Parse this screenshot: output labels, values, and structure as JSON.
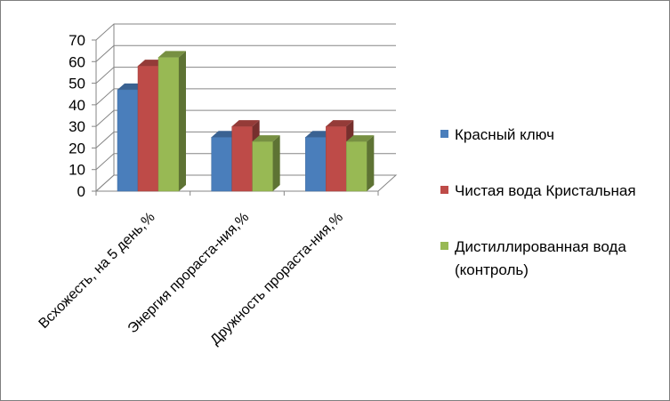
{
  "chart_data": {
    "type": "bar",
    "title": "",
    "categories": [
      "Всхожесть,  на 5 день,%",
      "Энергия прораста-ния,%",
      "Дружность прораста-ния,%"
    ],
    "series": [
      {
        "name": "Красный ключ",
        "values": [
          47,
          25,
          25
        ],
        "color": "#4a7ebb"
      },
      {
        "name": "Чистая вода Кристальная",
        "values": [
          58,
          30,
          30
        ],
        "color": "#be4b48"
      },
      {
        "name": "Дистиллированная вода (контроль)",
        "name_lines": [
          "Дистиллированная вода",
          "(контроль)"
        ],
        "values": [
          62,
          23,
          23
        ],
        "color": "#98b954"
      }
    ],
    "ylim": [
      0,
      70
    ],
    "yticks": [
      0,
      10,
      20,
      30,
      40,
      50,
      60,
      70
    ],
    "grid": true,
    "legend": "right",
    "style": "3d-clustered-column"
  }
}
